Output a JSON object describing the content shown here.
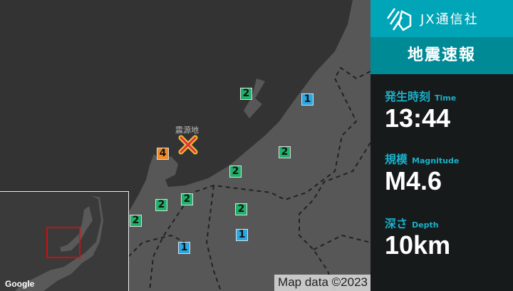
{
  "map": {
    "epicenter_label": "震源地",
    "attribution": "Map data ©2023",
    "google_logo": "Google",
    "colors": {
      "sea": "#333333",
      "land": "#575757",
      "epicenter": "#e0304a",
      "epicenter_outline": "#f0c030",
      "region_box": "#ff0000"
    },
    "intensity_colors": {
      "1": "#2aa6e0",
      "2": "#1fb06a",
      "4": "#ef8a25"
    },
    "stations": [
      {
        "intensity": "2"
      },
      {
        "intensity": "1"
      },
      {
        "intensity": "4"
      },
      {
        "intensity": "2"
      },
      {
        "intensity": "2"
      },
      {
        "intensity": "2"
      },
      {
        "intensity": "2"
      },
      {
        "intensity": "2"
      },
      {
        "intensity": "2"
      },
      {
        "intensity": "1"
      },
      {
        "intensity": "1"
      }
    ]
  },
  "panel": {
    "brand": "JX通信社",
    "title": "地震速報",
    "time": {
      "label": "発生時刻",
      "sub": "Time",
      "value": "13:44"
    },
    "magnitude": {
      "label": "規模",
      "sub": "Magnitude",
      "value": "M4.6"
    },
    "depth": {
      "label": "深さ",
      "sub": "Depth",
      "value": "10km"
    }
  }
}
